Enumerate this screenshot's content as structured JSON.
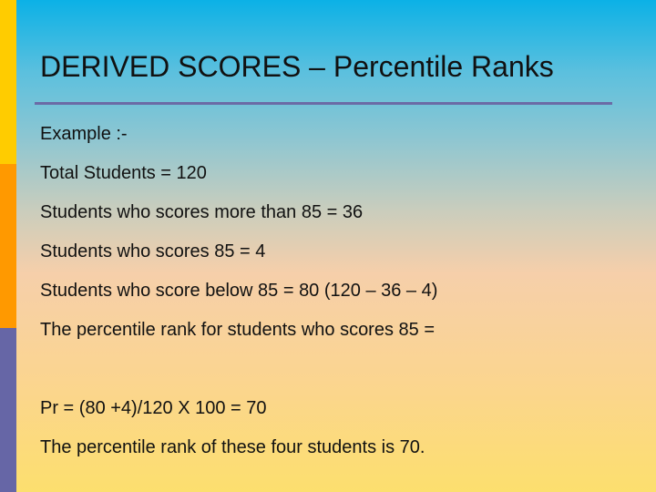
{
  "slide": {
    "title": "DERIVED SCORES – Percentile Ranks",
    "lines": [
      "Example :-",
      "Total Students  = 120",
      "Students who scores more than 85 = 36",
      "Students who scores 85 = 4",
      "Students who score below 85 = 80 (120 – 36 – 4)",
      "The percentile rank for students who scores 85 =",
      "Pr = (80 +4)/120 X 100 = 70",
      "The percentile rank of these four students is 70."
    ]
  },
  "colors": {
    "bar_top": "#ffcc00",
    "bar_middle": "#ff9900",
    "bar_bottom": "#6666a6",
    "title_rule": "#6b6ba6"
  }
}
